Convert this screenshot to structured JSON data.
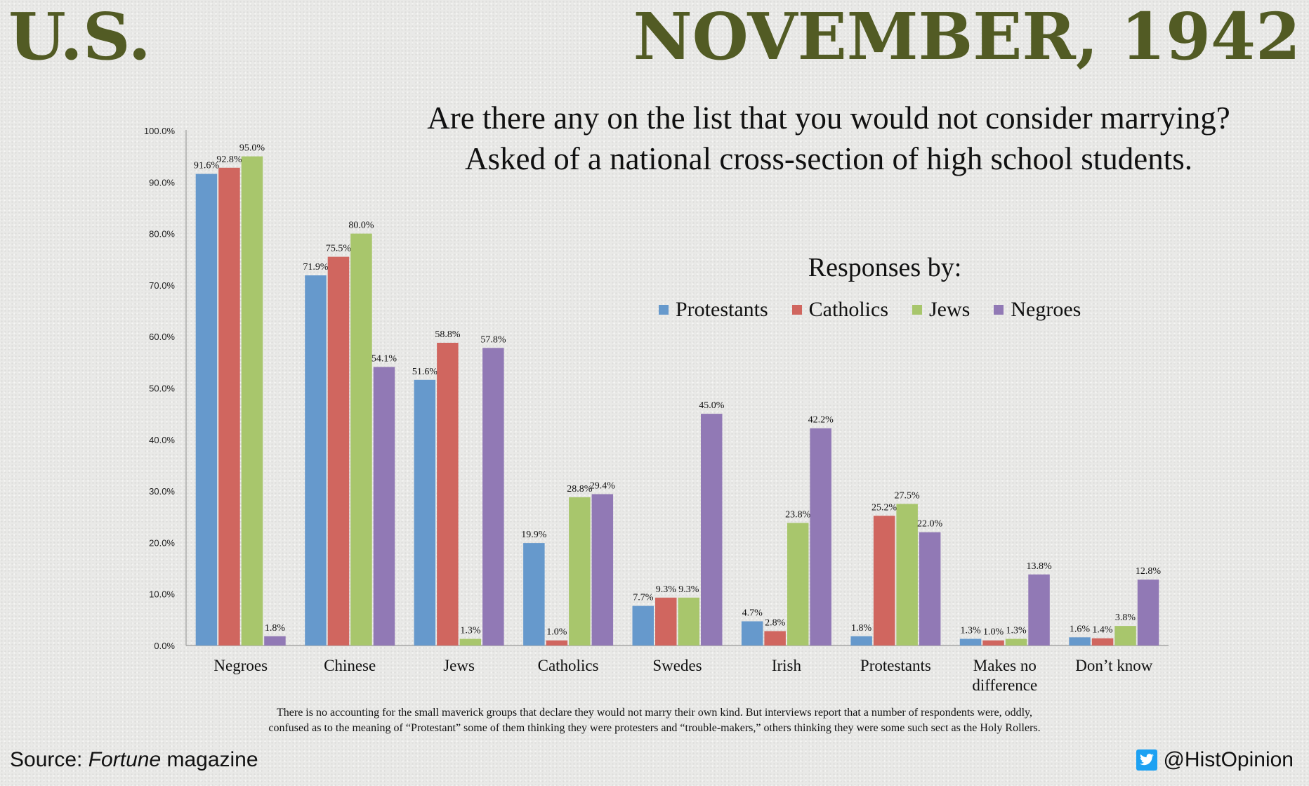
{
  "header": {
    "left": "U.S.",
    "right": "NOVEMBER, 1942"
  },
  "question_lines": [
    "Are there any on the list that you would not consider marrying?",
    "Asked of a national cross-section of high school students."
  ],
  "legend": {
    "title": "Responses by:",
    "items": [
      "Protestants",
      "Catholics",
      "Jews",
      "Negroes"
    ]
  },
  "colors": {
    "Protestants": "#6699cc",
    "Catholics": "#d0665f",
    "Jews": "#a8c66c",
    "Negroes": "#9179b5",
    "header": "#525b24"
  },
  "chart_data": {
    "type": "bar",
    "categories": [
      "Negroes",
      "Chinese",
      "Jews",
      "Catholics",
      "Swedes",
      "Irish",
      "Protestants",
      "Makes no difference",
      "Don’t know"
    ],
    "series": [
      {
        "name": "Protestants",
        "values": [
          91.6,
          71.9,
          51.6,
          19.9,
          7.7,
          4.7,
          1.8,
          1.3,
          1.6
        ]
      },
      {
        "name": "Catholics",
        "values": [
          92.8,
          75.5,
          58.8,
          1.0,
          9.3,
          2.8,
          25.2,
          1.0,
          1.4
        ]
      },
      {
        "name": "Jews",
        "values": [
          95.0,
          80.0,
          1.3,
          28.8,
          9.3,
          23.8,
          27.5,
          1.3,
          3.8
        ]
      },
      {
        "name": "Negroes",
        "values": [
          1.8,
          54.1,
          57.8,
          29.4,
          45.0,
          42.2,
          22.0,
          13.8,
          12.8
        ]
      }
    ],
    "ylim": [
      0,
      100
    ],
    "yticks": [
      "0.0%",
      "10.0%",
      "20.0%",
      "30.0%",
      "40.0%",
      "50.0%",
      "60.0%",
      "70.0%",
      "80.0%",
      "90.0%",
      "100.0%"
    ],
    "value_suffix": "%",
    "grid": false,
    "legend_position": "top-right"
  },
  "footnote": [
    "There is no accounting for the small maverick groups that declare they would not marry their own kind. But interviews report that a number of respondents were, oddly,",
    "confused as to the meaning of “Protestant” some of them thinking they were protesters and “trouble-makers,” others thinking they were some such sect as the Holy Rollers."
  ],
  "source": {
    "prefix": "Source: ",
    "publication": "Fortune",
    "suffix": " magazine"
  },
  "handle": "@HistOpinion",
  "icons": {
    "handle": "twitter-icon"
  }
}
